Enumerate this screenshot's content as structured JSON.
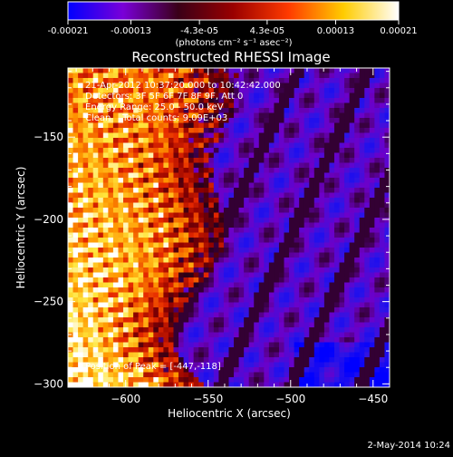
{
  "colorbar": {
    "tick_labels": [
      "-0.00021",
      "-0.00013",
      "-4.3e-05",
      "4.3e-05",
      "0.00013",
      "0.00021"
    ],
    "unit_label": "(photons cm⁻² s⁻¹ asec⁻²)",
    "range": [
      -0.00021,
      0.00021
    ],
    "colors": [
      "#0000ff",
      "#7a00d8",
      "#3a0018",
      "#9a0000",
      "#ff3a00",
      "#ffcc00",
      "#ffffff"
    ]
  },
  "chart_data": {
    "type": "heatmap",
    "title": "Reconstructed RHESSI Image",
    "xlabel": "Heliocentric X (arcsec)",
    "ylabel": "Heliocentric Y (arcsec)",
    "xlim": [
      -635,
      -440
    ],
    "ylim": [
      -302,
      -108
    ],
    "x_ticks": [
      -600,
      -550,
      -500,
      -450
    ],
    "y_ticks": [
      -150,
      -200,
      -250,
      -300
    ],
    "x_tick_labels": [
      "−600",
      "−550",
      "−500",
      "−450"
    ],
    "y_tick_labels": [
      "−150",
      "−200",
      "−250",
      "−300"
    ],
    "annotations": [
      "21-Apr-2012 10:37:20.000 to 10:42:42.000",
      "Detectors: 3F 5F 6F 7F 8F 9F, Att 0",
      "Energy Range: 25.0 - 50.0 keV",
      "Clean    Total counts: 9.09E+03"
    ],
    "peak_label": "Position of Peak = [-447,-118]",
    "colormap": "red-temperature / blue",
    "grid": false
  },
  "footer": {
    "date": "2-May-2014 10:24"
  }
}
